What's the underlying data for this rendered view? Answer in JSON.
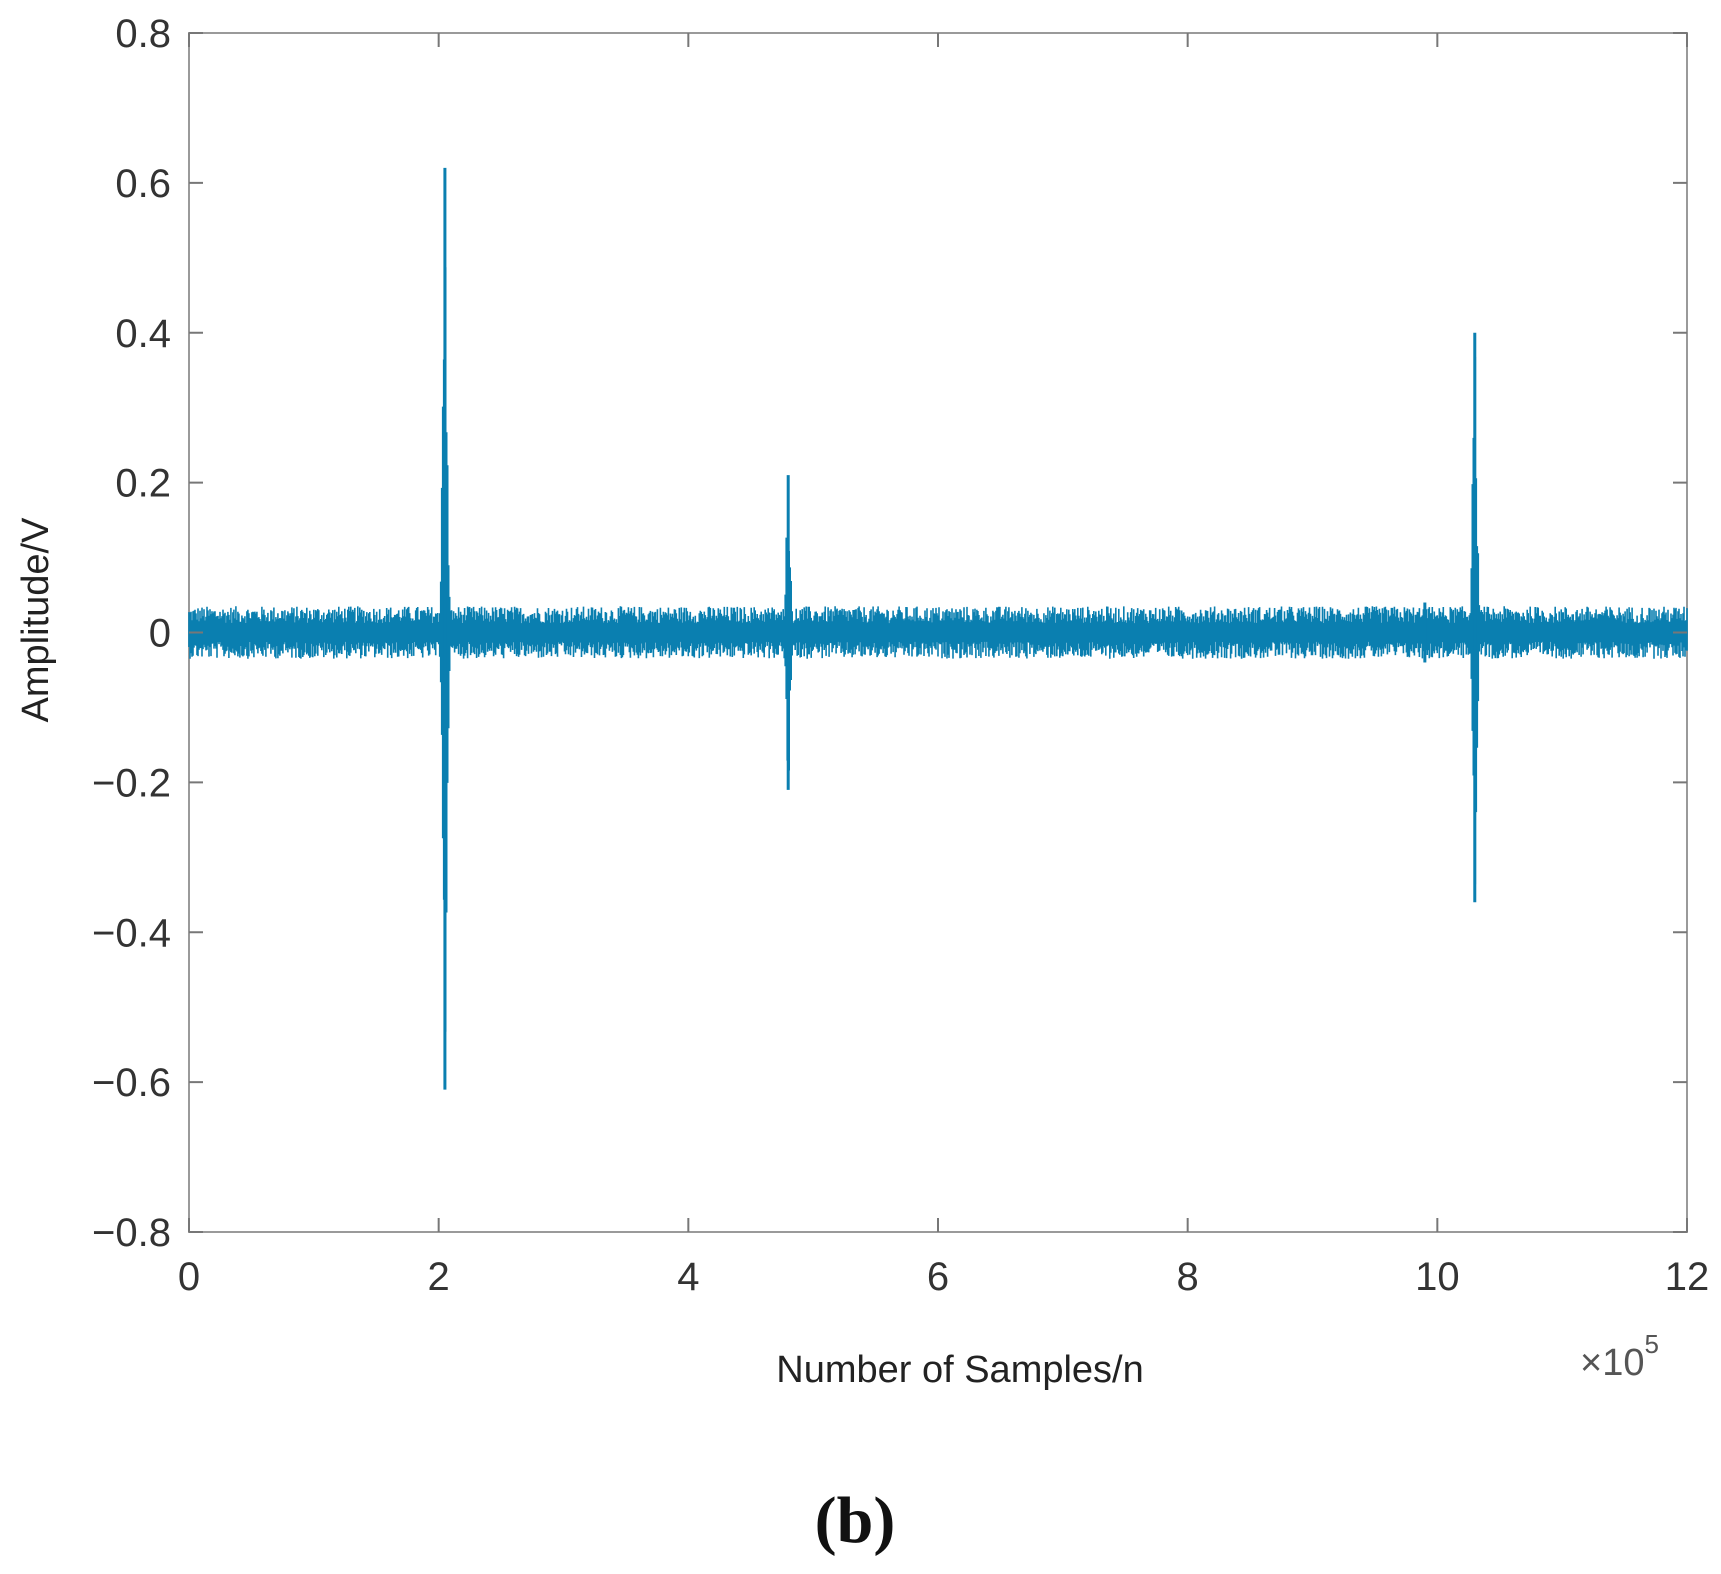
{
  "chart_data": {
    "type": "line",
    "xlabel": "Number of Samples/n",
    "ylabel": "Amplitude/V",
    "x_exponent_label": "×10",
    "x_exponent_power": "5",
    "panel_label": "(b)",
    "xlim": [
      0,
      12
    ],
    "ylim": [
      -0.8,
      0.8
    ],
    "x_ticks": [
      "0",
      "2",
      "4",
      "6",
      "8",
      "10",
      "12"
    ],
    "y_ticks": [
      "0.8",
      "0.6",
      "0.4",
      "0.2",
      "0",
      "−0.2",
      "−0.4",
      "−0.6",
      "−0.8"
    ],
    "x_tick_values": [
      0,
      2,
      4,
      6,
      8,
      10,
      12
    ],
    "y_tick_values": [
      0.8,
      0.6,
      0.4,
      0.2,
      0,
      -0.2,
      -0.4,
      -0.6,
      -0.8
    ],
    "grid": false,
    "series_color": "#0a7fb0",
    "baseline_noise": {
      "min": -0.025,
      "max": 0.025
    },
    "bursts": [
      {
        "x": 2.05,
        "max": 0.62,
        "min": -0.61
      },
      {
        "x": 4.8,
        "max": 0.21,
        "min": -0.21
      },
      {
        "x": 9.9,
        "max": 0.04,
        "min": -0.04
      },
      {
        "x": 10.3,
        "max": 0.4,
        "min": -0.36
      }
    ]
  }
}
